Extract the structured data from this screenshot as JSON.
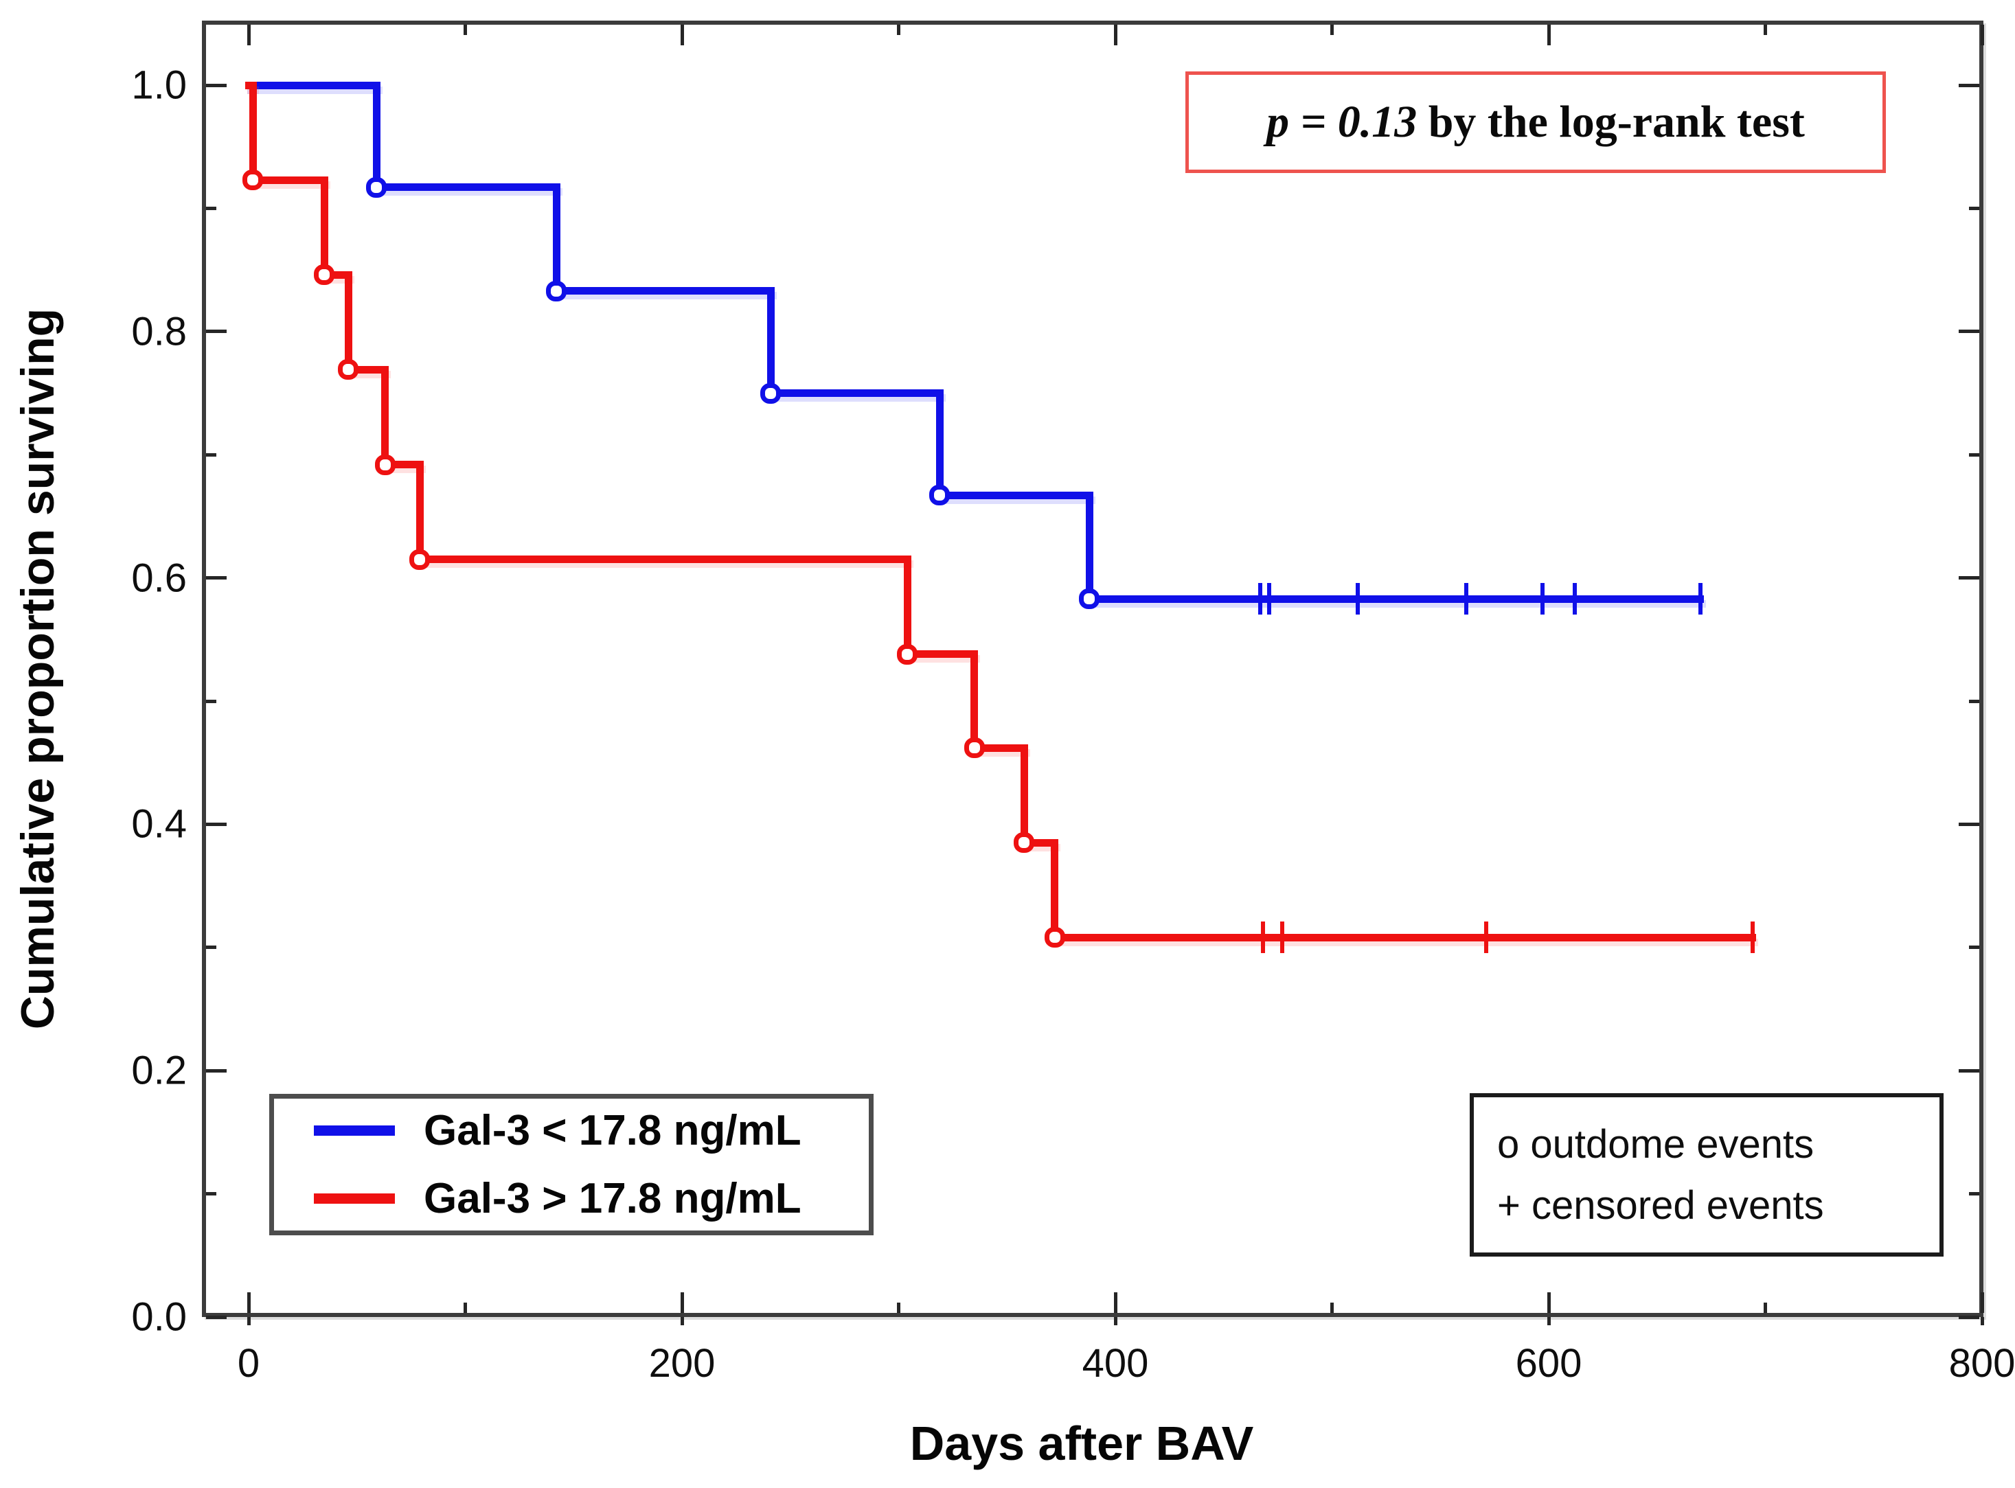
{
  "chart_data": {
    "type": "line",
    "subtype": "kaplan-meier-step",
    "title": "",
    "xlabel": "Days after BAV",
    "ylabel": "Cumulative proportion surviving",
    "xlim": [
      0,
      800
    ],
    "ylim": [
      0.0,
      1.0
    ],
    "grid": false,
    "legend_position": "bottom-left",
    "x_major_ticks": [
      0,
      200,
      400,
      600,
      800
    ],
    "x_minor_ticks": [
      100,
      300,
      500,
      700
    ],
    "x_tick_labels": [
      "0",
      "200",
      "400",
      "600",
      "800"
    ],
    "y_major_ticks": [
      1.0,
      0.8,
      0.6,
      0.4,
      0.2,
      0.0
    ],
    "y_minor_ticks": [
      0.9,
      0.7,
      0.5,
      0.3,
      0.1
    ],
    "y_tick_labels": [
      "1.0",
      "0.8",
      "0.6",
      "0.4",
      "0.2",
      "0.0"
    ],
    "series": [
      {
        "name": "Gal-3 < 17.8 ng/mL",
        "color": "#1010e8",
        "halo": "blue",
        "start": {
          "t": 0,
          "s": 1.0
        },
        "events": [
          [
            59,
            0.917
          ],
          [
            142,
            0.833
          ],
          [
            241,
            0.75
          ],
          [
            319,
            0.667
          ],
          [
            388,
            0.583
          ]
        ],
        "censored": [
          467,
          471,
          512,
          562,
          597,
          612,
          670
        ],
        "end": 670
      },
      {
        "name": "Gal-3 > 17.8 ng/mL",
        "color": "#ee1111",
        "halo": "red",
        "start": {
          "t": 0,
          "s": 1.0
        },
        "events": [
          [
            2,
            0.923
          ],
          [
            35,
            0.846
          ],
          [
            46,
            0.769
          ],
          [
            63,
            0.692
          ],
          [
            79,
            0.615
          ],
          [
            304,
            0.538
          ],
          [
            335,
            0.462
          ],
          [
            358,
            0.385
          ],
          [
            372,
            0.308
          ]
        ],
        "censored": [
          468,
          477,
          571,
          694
        ],
        "end": 694
      }
    ],
    "annotation": {
      "p_italic": "p = 0.13",
      "rest": " by the log-rank test"
    },
    "event_legend": [
      {
        "symbol": "o",
        "label": "outdome events"
      },
      {
        "symbol": "+",
        "label": "censored events"
      }
    ]
  }
}
